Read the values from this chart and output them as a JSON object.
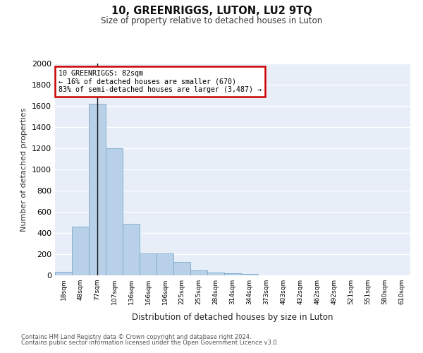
{
  "title": "10, GREENRIGGS, LUTON, LU2 9TQ",
  "subtitle": "Size of property relative to detached houses in Luton",
  "xlabel": "Distribution of detached houses by size in Luton",
  "ylabel": "Number of detached properties",
  "bar_color": "#b8d0e8",
  "bar_edge_color": "#7aaac8",
  "background_color": "#e8eef8",
  "categories": [
    "18sqm",
    "48sqm",
    "77sqm",
    "107sqm",
    "136sqm",
    "166sqm",
    "196sqm",
    "225sqm",
    "255sqm",
    "284sqm",
    "314sqm",
    "344sqm",
    "373sqm",
    "403sqm",
    "432sqm",
    "462sqm",
    "492sqm",
    "521sqm",
    "551sqm",
    "580sqm",
    "610sqm"
  ],
  "values": [
    35,
    460,
    1620,
    1200,
    490,
    210,
    210,
    130,
    45,
    30,
    20,
    15,
    0,
    0,
    0,
    0,
    0,
    0,
    0,
    0,
    0
  ],
  "ylim": [
    0,
    2000
  ],
  "yticks": [
    0,
    200,
    400,
    600,
    800,
    1000,
    1200,
    1400,
    1600,
    1800,
    2000
  ],
  "property_line_x": 2,
  "annotation_text": "10 GREENRIGGS: 82sqm\n← 16% of detached houses are smaller (670)\n83% of semi-detached houses are larger (3,487) →",
  "annotation_box_color": "#ffffff",
  "annotation_box_edge": "#cc0000",
  "footnote1": "Contains HM Land Registry data © Crown copyright and database right 2024.",
  "footnote2": "Contains public sector information licensed under the Open Government Licence v3.0."
}
